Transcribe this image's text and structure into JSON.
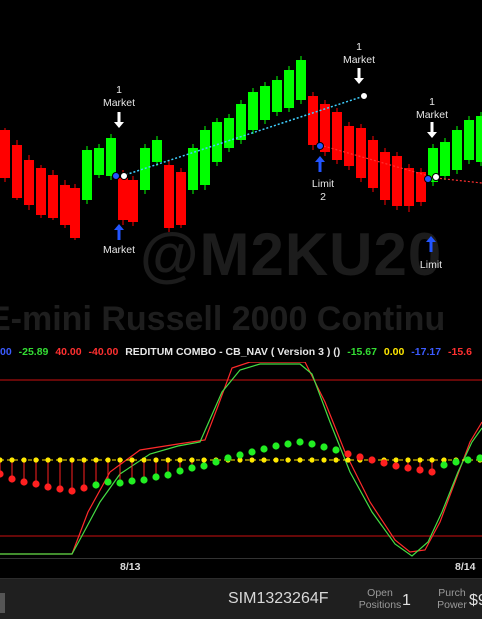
{
  "watermark": {
    "text": "@M2KU20",
    "subtitle": "E-mini Russell 2000 Continu"
  },
  "signals": {
    "buy_market_1": {
      "qty": "1",
      "type": "Market"
    },
    "exit_market_1": {
      "type": "Market"
    },
    "sell_market": {
      "qty": "1",
      "type": "Market"
    },
    "exit_limit_2": {
      "type": "Limit",
      "qty": "2"
    },
    "buy_market_2": {
      "qty": "1",
      "type": "Market"
    },
    "exit_limit_3": {
      "type": "Limit"
    }
  },
  "indicator": {
    "values_left": [
      {
        "text": "00",
        "color": "#3b5bff"
      },
      {
        "text": "-25.89",
        "color": "#33dd33"
      },
      {
        "text": "40.00",
        "color": "#ff3030"
      },
      {
        "text": "-40.00",
        "color": "#ff3030"
      }
    ],
    "title": "REDITUM COMBO - CB_NAV ( Version 3 ) ()",
    "values_right": [
      {
        "text": "-15.67",
        "color": "#33dd33"
      },
      {
        "text": "0.00",
        "color": "#ffe800"
      },
      {
        "text": "-17.17",
        "color": "#3b5bff"
      },
      {
        "text": "-15.6",
        "color": "#ff3030"
      }
    ]
  },
  "date_axis": {
    "labels": [
      "8/13",
      "8/14"
    ]
  },
  "status_bar": {
    "account": "SIM1323264F",
    "open_positions_label_1": "Open",
    "open_positions_label_2": "Positions",
    "open_positions_value": "1",
    "purch_power_label_1": "Purch",
    "purch_power_label_2": "Power",
    "purch_power_value": "$9"
  },
  "colors": {
    "up_candle": "#00ff00",
    "down_candle": "#ff0000",
    "trend_line": "#3fd0ff",
    "fast_osc": "#ff2a2a",
    "slow_osc": "#44dd44",
    "zero_line": "#ffe800",
    "band": "#cc1111"
  }
}
